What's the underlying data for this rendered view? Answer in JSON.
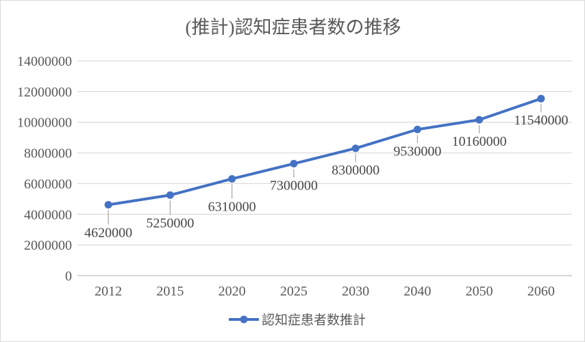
{
  "chart_data": {
    "type": "line",
    "title": "(推計)認知症患者数の推移",
    "categories": [
      "2012",
      "2015",
      "2020",
      "2025",
      "2030",
      "2040",
      "2050",
      "2060"
    ],
    "series": [
      {
        "name": "認知症患者数推計",
        "values": [
          4620000,
          5250000,
          6310000,
          7300000,
          8300000,
          9530000,
          10160000,
          11540000
        ]
      }
    ],
    "data_labels": [
      "4620000",
      "5250000",
      "6310000",
      "7300000",
      "8300000",
      "9530000",
      "10160000",
      "11540000"
    ],
    "ylim": [
      0,
      14000000
    ],
    "ytick_step": 2000000,
    "ytick_labels": [
      "0",
      "2000000",
      "4000000",
      "6000000",
      "8000000",
      "10000000",
      "12000000",
      "14000000"
    ],
    "grid": true,
    "legend_position": "bottom",
    "xlabel": "",
    "ylabel": ""
  },
  "colors": {
    "series_blue": "#4472C4",
    "gridline": "#D9D9D9",
    "axis_line": "#BFBFBF",
    "leader_line": "#A6A6A6",
    "title_text": "#595959",
    "axis_text": "#595959",
    "data_label_text": "#474747",
    "legend_text": "#595959",
    "background": "#FFFFFF",
    "chart_border": "#D9D9D9"
  }
}
